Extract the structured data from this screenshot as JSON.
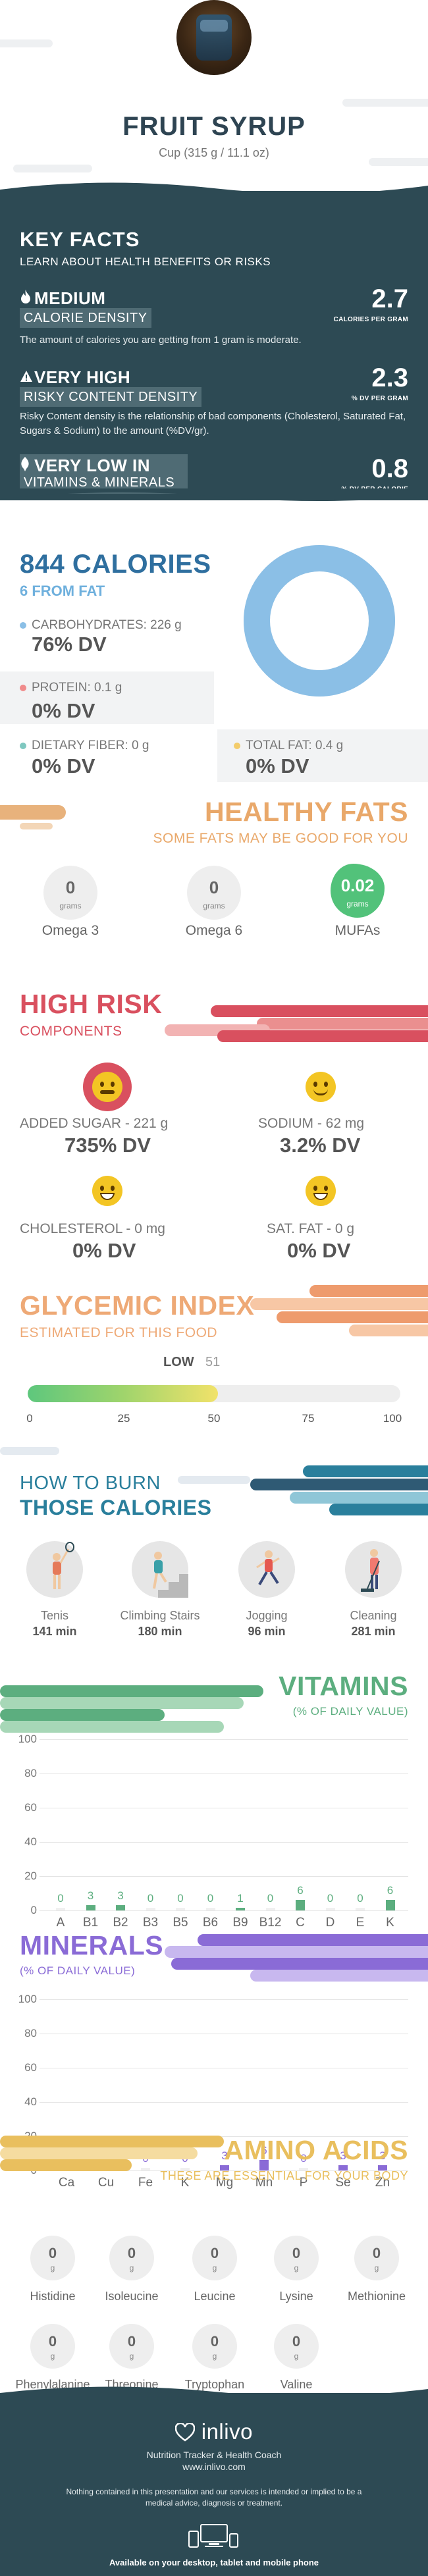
{
  "header": {
    "title": "FRUIT SYRUP",
    "serving": "Cup (315 g / 11.1 oz)"
  },
  "key_facts": {
    "title": "KEY FACTS",
    "subtitle": "LEARN ABOUT HEALTH BENEFITS OR RISKS",
    "calorie": {
      "level": "MEDIUM",
      "label": "CALORIE DENSITY",
      "desc": "The amount of calories you are getting from 1 gram is moderate.",
      "value": "2.7",
      "unit": "CALORIES PER GRAM",
      "icon": "flame-icon"
    },
    "risky": {
      "level": "VERY HIGH",
      "label": "RISKY CONTENT DENSITY",
      "desc": "Risky Content density is the relationship of bad components (Cholesterol, Saturated Fat, Sugars & Sodium) to the amount (%DV/gr).",
      "value": "2.3",
      "unit": "% DV PER GRAM",
      "icon": "warning-icon"
    },
    "vitamins": {
      "level": "VERY LOW",
      "level_prefix": "IN",
      "label": "VITAMINS & MINERALS",
      "value": "0.8",
      "unit": "% DV PER CALORIE",
      "icon": "leaf-icon"
    }
  },
  "calories": {
    "title": "844 CALORIES",
    "from_fat": "6 FROM FAT",
    "macros": {
      "carbs": {
        "label": "CARBOHYDRATES: 226 g",
        "dv": "76% DV",
        "color": "#8bbfe6"
      },
      "protein": {
        "label": "PROTEIN: 0.1 g",
        "dv": "0% DV",
        "color": "#f08b8b"
      },
      "fiber": {
        "label": "DIETARY FIBER: 0 g",
        "dv": "0% DV",
        "color": "#7fc8c0"
      },
      "fat": {
        "label": "TOTAL FAT: 0.4 g",
        "dv": "0% DV",
        "color": "#f3cc6b"
      }
    },
    "donut_carbs_fraction": 1.0
  },
  "healthy_fats": {
    "title": "HEALTHY FATS",
    "subtitle": "SOME FATS MAY BE GOOD FOR YOU",
    "items": [
      {
        "value": "0",
        "unit": "grams",
        "label": "Omega 3"
      },
      {
        "value": "0",
        "unit": "grams",
        "label": "Omega 6"
      },
      {
        "value": "0.02",
        "unit": "grams",
        "label": "MUFAs"
      }
    ]
  },
  "high_risk": {
    "title": "HIGH RISK",
    "subtitle": "COMPONENTS",
    "items": [
      {
        "label": "ADDED SUGAR - 221 g",
        "dv": "735% DV"
      },
      {
        "label": "SODIUM - 62 mg",
        "dv": "3.2% DV"
      },
      {
        "label": "CHOLESTEROL - 0 mg",
        "dv": "0% DV"
      },
      {
        "label": "SAT. FAT - 0 g",
        "dv": "0% DV"
      }
    ]
  },
  "glycemic": {
    "title": "GLYCEMIC INDEX",
    "subtitle": "ESTIMATED FOR THIS FOOD",
    "level": "LOW",
    "value": "51",
    "value_num": 51,
    "ticks": [
      "0",
      "25",
      "50",
      "75",
      "100"
    ]
  },
  "burn": {
    "title_line1": "HOW TO BURN",
    "title_line2": "THOSE CALORIES",
    "activities": [
      {
        "name": "Tenis",
        "minutes": "141 min"
      },
      {
        "name": "Climbing Stairs",
        "minutes": "180 min"
      },
      {
        "name": "Jogging",
        "minutes": "96 min"
      },
      {
        "name": "Cleaning",
        "minutes": "281 min"
      }
    ]
  },
  "vitamins": {
    "title": "VITAMINS",
    "subtitle": "(% OF DAILY VALUE)",
    "color": "#5cae7f",
    "y_ticks": [
      "0",
      "20",
      "40",
      "60",
      "80",
      "100"
    ],
    "categories": [
      "A",
      "B1",
      "B2",
      "B3",
      "B5",
      "B6",
      "B9",
      "B12",
      "C",
      "D",
      "E",
      "K"
    ],
    "values": [
      0,
      3,
      3,
      0,
      0,
      0,
      1,
      0,
      6,
      0,
      0,
      6
    ],
    "value_labels": [
      "0",
      "3",
      "3",
      "0",
      "0",
      "0",
      "1",
      "0",
      "6",
      "0",
      "0",
      "6"
    ]
  },
  "minerals": {
    "title": "MINERALS",
    "subtitle": "(% OF DAILY VALUE)",
    "color": "#8a6bd6",
    "y_ticks": [
      "0",
      "20",
      "40",
      "60",
      "80",
      "100"
    ],
    "categories": [
      "Ca",
      "Cu",
      "Fe",
      "K",
      "Mg",
      "Mn",
      "P",
      "Se",
      "Zn"
    ],
    "values": [
      0,
      6,
      0,
      0,
      3,
      6,
      0,
      3,
      3
    ],
    "value_labels": [
      "0",
      "6",
      "0",
      "0",
      "3",
      "6",
      "0",
      "3",
      "3"
    ]
  },
  "amino": {
    "title": "AMINO ACIDS",
    "subtitle": "THESE ARE ESSENTIAL FOR YOUR BODY",
    "unit": "g",
    "items": [
      {
        "value": "0",
        "label": "Histidine"
      },
      {
        "value": "0",
        "label": "Isoleucine"
      },
      {
        "value": "0",
        "label": "Leucine"
      },
      {
        "value": "0",
        "label": "Lysine"
      },
      {
        "value": "0",
        "label": "Methionine"
      },
      {
        "value": "0",
        "label": "Phenylalanine"
      },
      {
        "value": "0",
        "label": "Threonine"
      },
      {
        "value": "0",
        "label": "Tryptophan"
      },
      {
        "value": "0",
        "label": "Valine"
      }
    ]
  },
  "footer": {
    "logo": "inlivo",
    "tagline": "Nutrition Tracker & Health Coach",
    "url": "www.inlivo.com",
    "disclaimer": "Nothing contained in this presentation and our services is intended or implied to be a medical advice, diagnosis or treatment.",
    "available": "Available on your desktop, tablet and mobile phone"
  }
}
